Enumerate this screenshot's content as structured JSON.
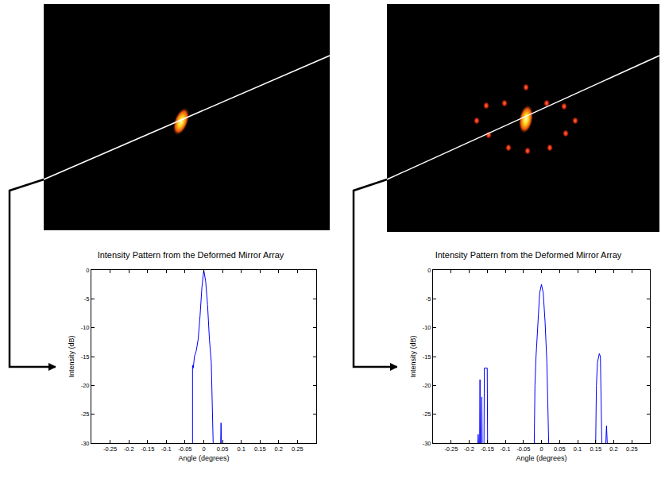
{
  "chart_data": [
    {
      "type": "line",
      "title": "Intensity Pattern from the Deformed Mirror Array",
      "x_label": "Angle (degrees)",
      "y_label": "Intensity (dB)",
      "xlim": [
        -0.3,
        0.3
      ],
      "ylim": [
        -30,
        0
      ],
      "xticks": [
        -0.25,
        -0.2,
        -0.15,
        -0.1,
        -0.05,
        0,
        0.05,
        0.1,
        0.15,
        0.2,
        0.25
      ],
      "yticks": [
        -30,
        -25,
        -20,
        -15,
        -10,
        -5,
        0
      ],
      "grid": false,
      "color": "#0000ff",
      "x": [
        -0.03,
        -0.03,
        -0.028,
        -0.025,
        -0.02,
        -0.015,
        -0.01,
        -0.005,
        0,
        0.005,
        0.01,
        0.015,
        0.02,
        0.022,
        0.025,
        null,
        0.045,
        0.046,
        0.047
      ],
      "values": [
        -30,
        -16.5,
        -17,
        -15,
        -14,
        -12,
        -8,
        -3,
        0,
        -2,
        -6,
        -12,
        -16,
        -22,
        -30,
        null,
        -30,
        -26.5,
        -30
      ]
    },
    {
      "type": "line",
      "title": "Intensity Pattern from the Deformed Mirror Array",
      "x_label": "Angle (degrees)",
      "y_label": "Intensity (dB)",
      "xlim": [
        -0.3,
        0.3
      ],
      "ylim": [
        -30,
        0
      ],
      "xticks": [
        -0.25,
        -0.2,
        -0.15,
        -0.1,
        -0.05,
        0,
        0.05,
        0.1,
        0.15,
        0.2,
        0.25
      ],
      "yticks": [
        -30,
        -25,
        -20,
        -15,
        -10,
        -5,
        0
      ],
      "grid": false,
      "color": "#0000ff",
      "x": [
        -0.176,
        -0.175,
        -0.174,
        null,
        -0.171,
        -0.17,
        -0.169,
        null,
        -0.166,
        -0.165,
        -0.164,
        null,
        -0.159,
        -0.158,
        -0.15,
        -0.149,
        null,
        -0.02,
        -0.018,
        -0.015,
        -0.01,
        -0.005,
        0,
        0.005,
        0.01,
        0.015,
        0.02,
        null,
        0.15,
        0.152,
        0.155,
        0.16,
        0.163,
        0.165,
        0.167,
        null,
        0.178,
        0.18,
        0.182
      ],
      "values": [
        -30,
        -28.5,
        -30,
        null,
        -30,
        -19,
        -30,
        null,
        -30,
        -22,
        -30,
        null,
        -30,
        -17,
        -17,
        -30,
        null,
        -30,
        -20,
        -15,
        -9,
        -4,
        -2.5,
        -4,
        -9,
        -16,
        -30,
        null,
        -30,
        -20,
        -16,
        -14.5,
        -15,
        -21,
        -30,
        null,
        -30,
        -27,
        -30
      ]
    }
  ]
}
